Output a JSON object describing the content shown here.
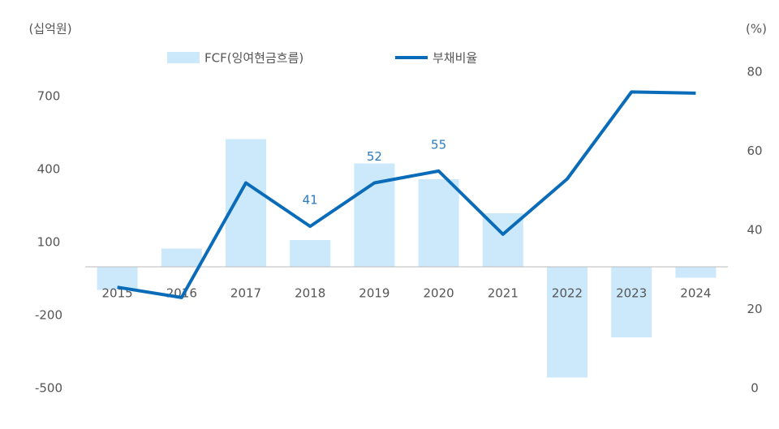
{
  "chart_data": {
    "type": "bar-line",
    "y_unit": "(십억원)",
    "y2_unit": "(%)",
    "categories": [
      "2015",
      "2016",
      "2017",
      "2018",
      "2019",
      "2020",
      "2021",
      "2022",
      "2023",
      "2024"
    ],
    "series": [
      {
        "name": "FCF(잉여현금흐름)",
        "type": "bar",
        "color": "#cce9fb",
        "values": [
          -95,
          75,
          525,
          110,
          425,
          360,
          220,
          -455,
          -290,
          -45
        ]
      },
      {
        "name": "부채비율",
        "type": "line",
        "axis": "y2",
        "color": "#0a6cb8",
        "values": [
          25.6,
          23,
          52,
          41,
          52,
          55,
          39,
          53,
          75,
          74.7
        ],
        "value_labels": [
          null,
          null,
          null,
          "41",
          "52",
          "55",
          null,
          null,
          null,
          null
        ]
      }
    ],
    "ylim": [
      -500,
      800
    ],
    "yticks": [
      -500,
      -200,
      100,
      400,
      700
    ],
    "y2lim": [
      0,
      80
    ],
    "y2ticks": [
      0,
      20,
      40,
      60,
      80
    ],
    "label_color": "#2a7bbf"
  }
}
